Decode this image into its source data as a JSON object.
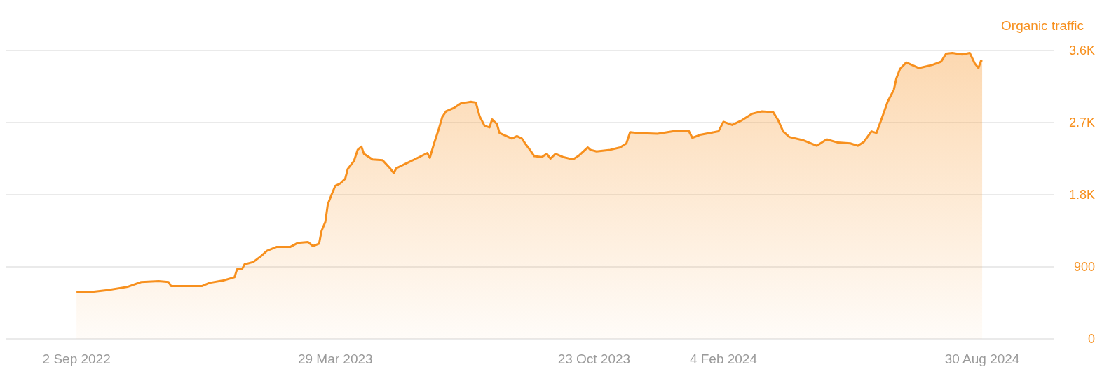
{
  "chart_data": {
    "type": "area",
    "ylabel": "Organic traffic",
    "grid": "y",
    "legend": false,
    "marker": "none",
    "xlim": [
      "2022-07-07",
      "2024-10-27"
    ],
    "xticks": [
      {
        "value": "2022-09-02",
        "label": "2 Sep 2022"
      },
      {
        "value": "2023-03-29",
        "label": "29 Mar 2023"
      },
      {
        "value": "2023-10-23",
        "label": "23 Oct 2023"
      },
      {
        "value": "2024-02-04",
        "label": "4 Feb 2024"
      },
      {
        "value": "2024-08-30",
        "label": "30 Aug 2024"
      }
    ],
    "ylim": [
      0,
      3600
    ],
    "yticks": [
      0,
      900,
      {
        "value": 1800,
        "label": "1.8K"
      },
      {
        "value": 2700,
        "label": "2.7K"
      },
      {
        "value": 3600,
        "label": "3.6K"
      }
    ],
    "x": [
      "2022-09-02",
      "2022-09-16",
      "2022-09-27",
      "2022-10-13",
      "2022-10-24",
      "2022-11-07",
      "2022-11-15",
      "2022-11-17",
      "2022-11-29",
      "2022-12-12",
      "2022-12-18",
      "2022-12-29",
      "2023-01-07",
      "2023-01-09",
      "2023-01-13",
      "2023-01-15",
      "2023-01-22",
      "2023-01-28",
      "2023-02-02",
      "2023-02-10",
      "2023-02-21",
      "2023-02-27",
      "2023-03-07",
      "2023-03-11",
      "2023-03-16",
      "2023-03-18",
      "2023-03-21",
      "2023-03-23",
      "2023-03-26",
      "2023-03-29",
      "2023-04-02",
      "2023-04-06",
      "2023-04-08",
      "2023-04-13",
      "2023-04-16",
      "2023-04-19",
      "2023-04-21",
      "2023-04-28",
      "2023-05-06",
      "2023-05-12",
      "2023-05-15",
      "2023-05-17",
      "2023-05-25",
      "2023-06-02",
      "2023-06-11",
      "2023-06-13",
      "2023-06-16",
      "2023-06-20",
      "2023-06-23",
      "2023-06-26",
      "2023-07-02",
      "2023-07-08",
      "2023-07-12",
      "2023-07-16",
      "2023-07-20",
      "2023-07-23",
      "2023-07-27",
      "2023-07-31",
      "2023-08-02",
      "2023-08-06",
      "2023-08-08",
      "2023-08-18",
      "2023-08-22",
      "2023-08-26",
      "2023-08-29",
      "2023-09-01",
      "2023-09-05",
      "2023-09-11",
      "2023-09-15",
      "2023-09-18",
      "2023-09-22",
      "2023-09-28",
      "2023-10-06",
      "2023-10-11",
      "2023-10-18",
      "2023-10-20",
      "2023-10-25",
      "2023-11-05",
      "2023-11-13",
      "2023-11-18",
      "2023-11-21",
      "2023-11-27",
      "2023-12-13",
      "2023-12-29",
      "2024-01-07",
      "2024-01-10",
      "2024-01-17",
      "2024-01-31",
      "2024-02-04",
      "2024-02-11",
      "2024-02-19",
      "2024-02-27",
      "2024-03-06",
      "2024-03-15",
      "2024-03-19",
      "2024-03-23",
      "2024-03-28",
      "2024-04-08",
      "2024-04-19",
      "2024-04-27",
      "2024-05-06",
      "2024-05-16",
      "2024-05-22",
      "2024-05-27",
      "2024-06-02",
      "2024-06-06",
      "2024-06-10",
      "2024-06-15",
      "2024-06-20",
      "2024-06-22",
      "2024-06-25",
      "2024-06-30",
      "2024-07-10",
      "2024-07-21",
      "2024-07-28",
      "2024-08-01",
      "2024-08-06",
      "2024-08-14",
      "2024-08-20",
      "2024-08-24",
      "2024-08-27",
      "2024-08-29",
      "2024-08-30"
    ],
    "series": [
      {
        "color": "#f7901e",
        "values": [
          580,
          590,
          610,
          650,
          710,
          720,
          710,
          660,
          660,
          660,
          700,
          730,
          770,
          870,
          870,
          930,
          960,
          1030,
          1100,
          1150,
          1150,
          1200,
          1210,
          1160,
          1190,
          1350,
          1460,
          1680,
          1800,
          1910,
          1940,
          2000,
          2120,
          2220,
          2360,
          2400,
          2310,
          2240,
          2230,
          2130,
          2070,
          2130,
          2190,
          2250,
          2320,
          2260,
          2420,
          2610,
          2770,
          2840,
          2880,
          2940,
          2950,
          2960,
          2950,
          2780,
          2660,
          2640,
          2740,
          2680,
          2570,
          2500,
          2530,
          2500,
          2430,
          2370,
          2280,
          2270,
          2310,
          2250,
          2310,
          2270,
          2240,
          2290,
          2390,
          2360,
          2340,
          2360,
          2390,
          2440,
          2580,
          2570,
          2560,
          2600,
          2600,
          2510,
          2550,
          2590,
          2710,
          2670,
          2730,
          2810,
          2840,
          2830,
          2730,
          2590,
          2520,
          2480,
          2410,
          2490,
          2450,
          2440,
          2410,
          2460,
          2590,
          2570,
          2740,
          2960,
          3110,
          3250,
          3370,
          3450,
          3380,
          3420,
          3460,
          3560,
          3570,
          3550,
          3570,
          3440,
          3380,
          3470,
          3460
        ]
      }
    ]
  }
}
